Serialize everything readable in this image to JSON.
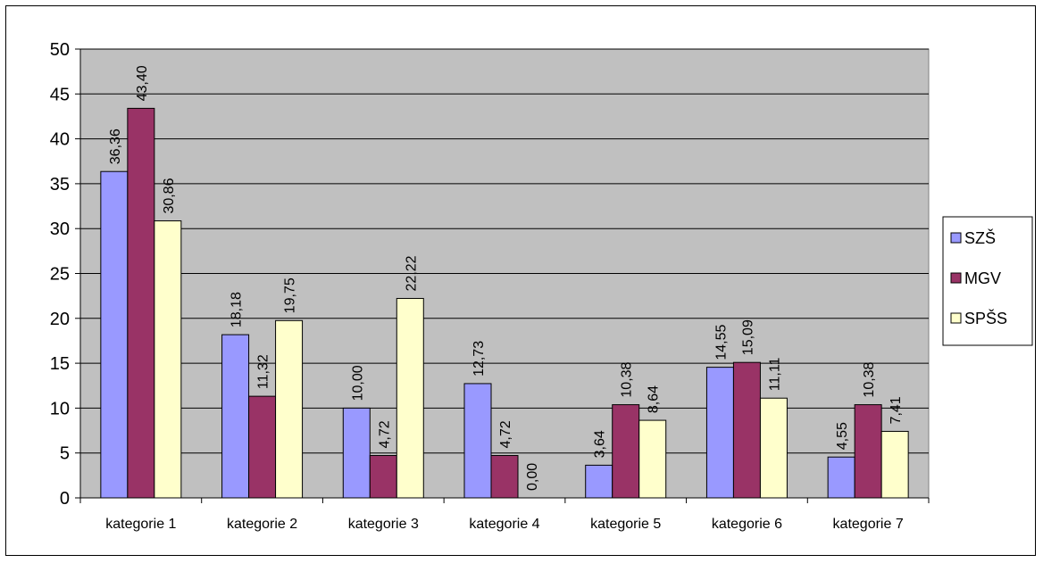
{
  "chart_data": {
    "type": "bar",
    "categories": [
      "kategorie 1",
      "kategorie 2",
      "kategorie 3",
      "kategorie 4",
      "kategorie 5",
      "kategorie 6",
      "kategorie 7"
    ],
    "series": [
      {
        "name": "SZŠ",
        "color": "#9999ff",
        "values": [
          36.36,
          18.18,
          10.0,
          12.73,
          3.64,
          14.55,
          4.55
        ],
        "labels": [
          "36,36",
          "18,18",
          "10,00",
          "12,73",
          "3,64",
          "14,55",
          "4,55"
        ]
      },
      {
        "name": "MGV",
        "color": "#993366",
        "values": [
          43.4,
          11.32,
          4.72,
          4.72,
          10.38,
          15.09,
          10.38
        ],
        "labels": [
          "43,40",
          "11,32",
          "4,72",
          "4,72",
          "10,38",
          "15,09",
          "10,38"
        ]
      },
      {
        "name": "SPŠS",
        "color": "#ffffcc",
        "values": [
          30.86,
          19.75,
          22.22,
          0.0,
          8.64,
          11.11,
          7.41
        ],
        "labels": [
          "30,86",
          "19,75",
          "22,22",
          "0,00",
          "8,64",
          "11,11",
          "7,41"
        ]
      }
    ],
    "yticks": [
      "0",
      "5",
      "10",
      "15",
      "20",
      "25",
      "30",
      "35",
      "40",
      "45",
      "50"
    ],
    "ylim": [
      0,
      50
    ],
    "grid": true,
    "plot_background": "#c0c0c0",
    "legend_position": "right"
  }
}
